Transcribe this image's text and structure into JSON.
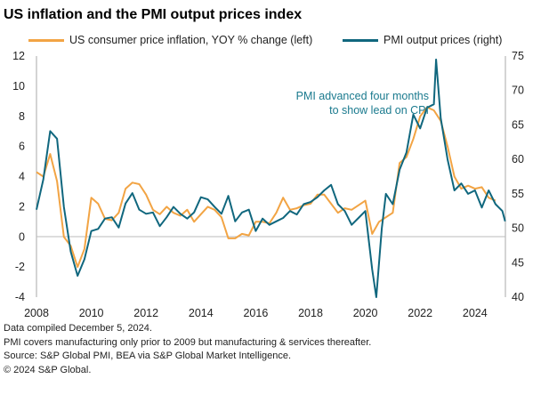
{
  "chart_data": {
    "type": "line",
    "title": "US inflation and the PMI output prices index",
    "xlabel": "",
    "ylabel_left": "",
    "ylabel_right": "",
    "xlim": [
      2008,
      2025.15
    ],
    "ylim_left": [
      -4,
      12
    ],
    "ylim_right": [
      40,
      75
    ],
    "x_ticks": [
      "2008",
      "2010",
      "2012",
      "2014",
      "2016",
      "2018",
      "2020",
      "2022",
      "2024"
    ],
    "y_ticks_left": [
      "12",
      "10",
      "8",
      "6",
      "4",
      "2",
      "0",
      "-2",
      "-4"
    ],
    "y_ticks_right": [
      "75",
      "70",
      "65",
      "60",
      "55",
      "50",
      "45",
      "40"
    ],
    "legend_position": "top",
    "annotation": [
      "PMI advanced four months",
      "to show lead on CPI"
    ],
    "series": [
      {
        "name": "US consumer price inflation, YOY % change (left)",
        "axis": "left",
        "color": "#F2A444",
        "x": [
          2008.0,
          2008.25,
          2008.5,
          2008.75,
          2009.0,
          2009.25,
          2009.5,
          2009.75,
          2010.0,
          2010.25,
          2010.5,
          2010.75,
          2011.0,
          2011.25,
          2011.5,
          2011.75,
          2012.0,
          2012.25,
          2012.5,
          2012.75,
          2013.0,
          2013.25,
          2013.5,
          2013.75,
          2014.0,
          2014.25,
          2014.5,
          2014.75,
          2015.0,
          2015.25,
          2015.5,
          2015.75,
          2016.0,
          2016.25,
          2016.5,
          2016.75,
          2017.0,
          2017.25,
          2017.5,
          2017.75,
          2018.0,
          2018.25,
          2018.5,
          2018.75,
          2019.0,
          2019.25,
          2019.5,
          2019.75,
          2020.0,
          2020.25,
          2020.5,
          2020.75,
          2021.0,
          2021.25,
          2021.5,
          2021.75,
          2022.0,
          2022.25,
          2022.5,
          2022.75,
          2023.0,
          2023.25,
          2023.5,
          2023.75,
          2024.0,
          2024.25,
          2024.5,
          2024.75
        ],
        "values": [
          4.3,
          4.0,
          5.5,
          3.7,
          0.0,
          -0.6,
          -2.0,
          -0.8,
          2.6,
          2.2,
          1.2,
          1.1,
          1.6,
          3.2,
          3.6,
          3.5,
          2.8,
          1.8,
          1.5,
          2.0,
          1.6,
          1.4,
          1.8,
          1.0,
          1.5,
          2.0,
          1.8,
          1.3,
          -0.1,
          -0.1,
          0.2,
          0.1,
          1.0,
          1.0,
          0.9,
          1.6,
          2.6,
          1.8,
          1.9,
          2.1,
          2.2,
          2.8,
          2.8,
          2.2,
          1.6,
          1.9,
          1.8,
          2.1,
          2.4,
          0.2,
          1.0,
          1.3,
          1.6,
          4.9,
          5.3,
          6.5,
          8.0,
          8.6,
          8.4,
          7.7,
          6.0,
          4.0,
          3.2,
          3.4,
          3.2,
          3.3,
          2.6,
          2.4
        ]
      },
      {
        "name": "PMI output prices (right)",
        "axis": "right",
        "color": "#10677E",
        "x": [
          2008.0,
          2008.25,
          2008.5,
          2008.75,
          2009.0,
          2009.25,
          2009.5,
          2009.75,
          2010.0,
          2010.25,
          2010.5,
          2010.75,
          2011.0,
          2011.25,
          2011.5,
          2011.75,
          2012.0,
          2012.25,
          2012.5,
          2012.75,
          2013.0,
          2013.25,
          2013.5,
          2013.75,
          2014.0,
          2014.25,
          2014.5,
          2014.75,
          2015.0,
          2015.25,
          2015.5,
          2015.75,
          2016.0,
          2016.25,
          2016.5,
          2016.75,
          2017.0,
          2017.25,
          2017.5,
          2017.75,
          2018.0,
          2018.25,
          2018.5,
          2018.75,
          2019.0,
          2019.25,
          2019.5,
          2019.75,
          2020.0,
          2020.25,
          2020.4,
          2020.6,
          2020.75,
          2021.0,
          2021.25,
          2021.5,
          2021.75,
          2022.0,
          2022.25,
          2022.5,
          2022.58,
          2022.75,
          2023.0,
          2023.25,
          2023.5,
          2023.75,
          2024.0,
          2024.25,
          2024.5,
          2024.75,
          2025.0,
          2025.1
        ],
        "values": [
          52.7,
          57.1,
          64.1,
          63.0,
          53.1,
          46.6,
          43.1,
          45.5,
          49.6,
          49.9,
          51.4,
          51.6,
          50.1,
          53.6,
          55.1,
          52.7,
          52.1,
          52.3,
          50.3,
          51.6,
          53.1,
          52.1,
          51.4,
          52.3,
          54.5,
          54.2,
          53.1,
          52.1,
          54.7,
          51.0,
          52.3,
          52.7,
          49.6,
          51.4,
          50.5,
          51.0,
          51.5,
          52.5,
          52.0,
          53.5,
          53.8,
          54.5,
          55.5,
          56.3,
          53.5,
          52.5,
          50.5,
          51.5,
          52.5,
          44.0,
          40.0,
          50.0,
          55.0,
          53.5,
          58.5,
          61.0,
          66.5,
          64.5,
          67.5,
          68.0,
          74.5,
          66.0,
          60.0,
          55.5,
          56.5,
          55.0,
          55.5,
          53.0,
          55.5,
          53.5,
          52.5,
          51.0
        ]
      }
    ]
  },
  "notes": [
    "Data compiled December 5, 2024.",
    "PMI covers manufacturing only prior to 2009 but manufacturing & services thereafter.",
    "Source: S&P Global PMI, BEA via S&P Global Market Intelligence.",
    "© 2024 S&P Global."
  ]
}
